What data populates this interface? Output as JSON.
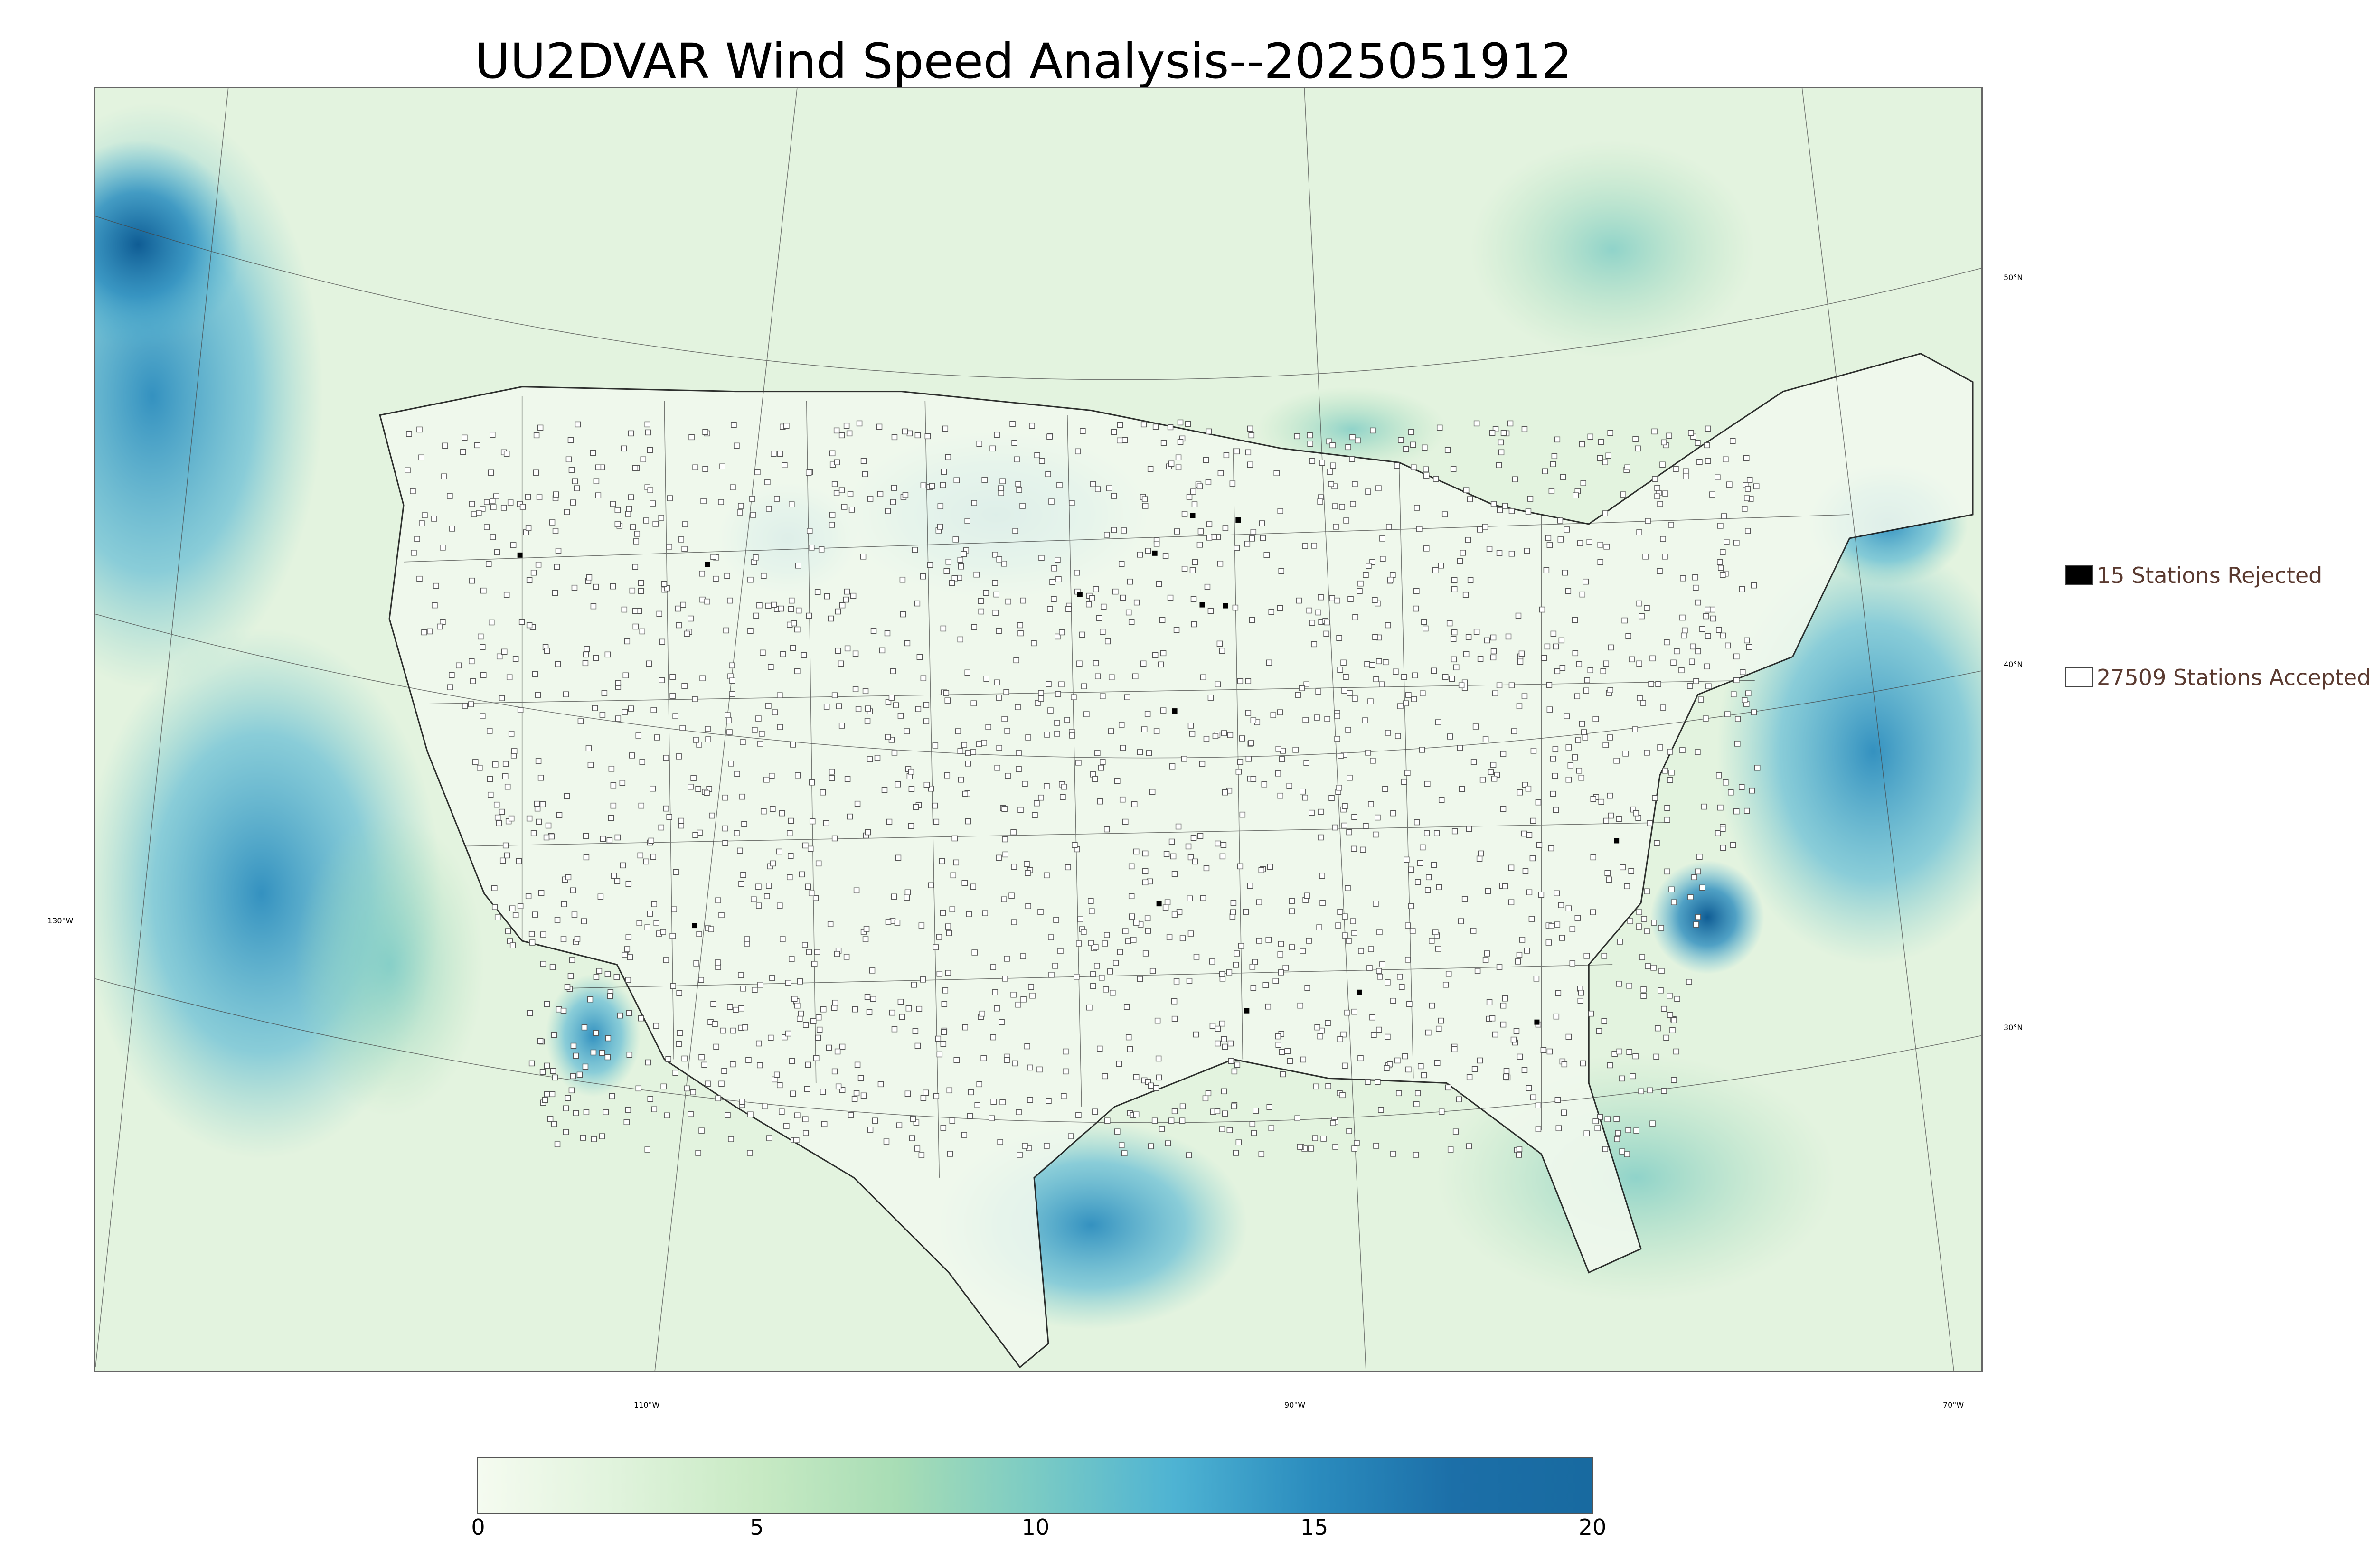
{
  "title": "UU2DVAR Wind Speed Analysis--2025051912",
  "map": {
    "lat_labels": [
      "50°N",
      "40°N",
      "30°N"
    ],
    "lon_labels": [
      "130°W",
      "110°W",
      "90°W",
      "70°W"
    ]
  },
  "legend": {
    "rejected": {
      "count": 15,
      "label": "15 Stations Rejected",
      "color": "#000000"
    },
    "accepted": {
      "count": 27509,
      "label": "27509 Stations Accepted",
      "color": "#ffffff"
    }
  },
  "colorbar": {
    "min": 0,
    "max": 20,
    "tick_labels": [
      "0",
      "5",
      "10",
      "15",
      "20"
    ],
    "colors": [
      "#f5fbf0",
      "#e0f3dc",
      "#c8eac4",
      "#a8ddb5",
      "#7bcbc4",
      "#4eb3d3",
      "#2b8cbe",
      "#1c6fa8",
      "#186aa0"
    ]
  }
}
